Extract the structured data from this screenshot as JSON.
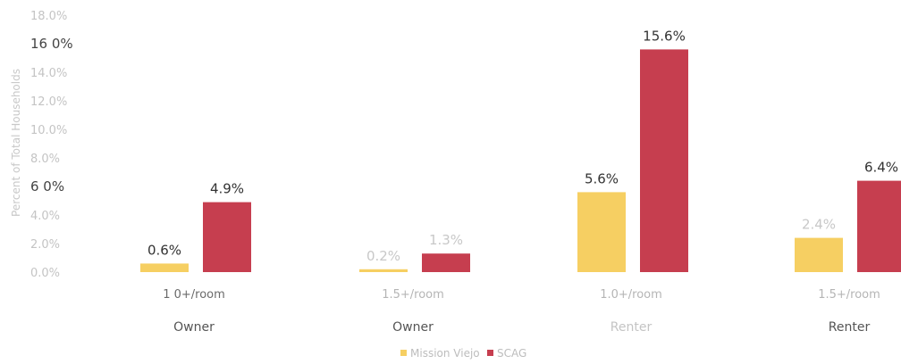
{
  "chart_data": {
    "type": "bar",
    "ylabel": "Percent of Total Households",
    "ylim": [
      0,
      18
    ],
    "y_ticks": [
      "0.0%",
      "2.0%",
      "4.0%",
      "6.0%",
      "8.0%",
      "10.0%",
      "12.0%",
      "14.0%",
      "16.0%",
      "18.0%"
    ],
    "y_tick_labels": [
      "0.0%",
      "2.0%",
      "4.0%",
      "6 0%",
      "8.0%",
      "10.0%",
      "12.0%",
      "14.0%",
      "16 0%",
      "18.0%"
    ],
    "categories": [
      {
        "sub": "1 0+/room",
        "group": "Owner"
      },
      {
        "sub": "1.5+/room",
        "group": "Owner"
      },
      {
        "sub": "1.0+/room",
        "group": "Renter"
      },
      {
        "sub": "1.5+/room",
        "group": "Renter"
      }
    ],
    "series": [
      {
        "name": "Mission Viejo",
        "color": "#f6cf62",
        "values": [
          0.6,
          0.2,
          5.6,
          2.4
        ],
        "labels": [
          "0.6%",
          "0.2%",
          "5.6%",
          "2.4%"
        ]
      },
      {
        "name": "SCAG",
        "color": "#c63e4f",
        "values": [
          4.9,
          1.3,
          15.6,
          6.4
        ],
        "labels": [
          "4.9%",
          "1.3%",
          "15.6%",
          "6.4%"
        ]
      }
    ],
    "legend_position": "bottom",
    "grid": false
  }
}
